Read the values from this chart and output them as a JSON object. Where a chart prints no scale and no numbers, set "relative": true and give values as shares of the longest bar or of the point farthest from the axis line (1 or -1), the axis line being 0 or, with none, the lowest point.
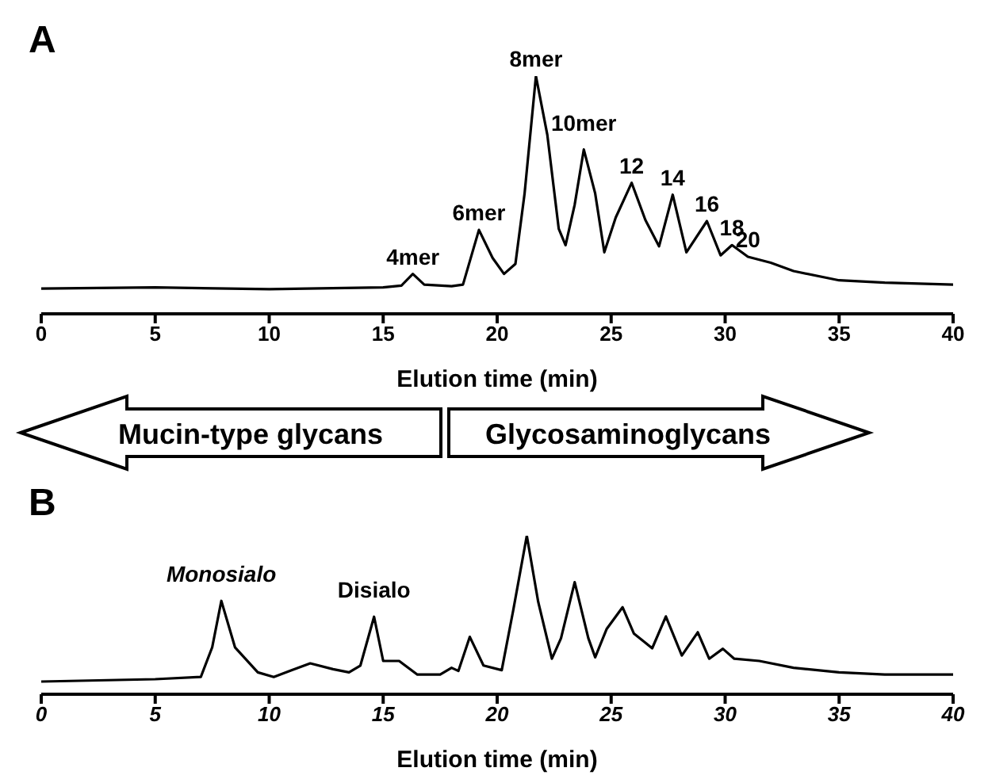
{
  "chart_data": [
    {
      "type": "line",
      "title": "A",
      "xlabel": "Elution time (min)",
      "relative": true,
      "marker": "none",
      "xlim": [
        0,
        40
      ],
      "xticks": [
        0,
        5,
        10,
        15,
        20,
        25,
        30,
        35,
        40
      ],
      "x": [
        0,
        5,
        10,
        15,
        15.8,
        16.3,
        16.8,
        18,
        18.5,
        19.2,
        19.8,
        20.3,
        20.8,
        21.2,
        21.7,
        22.2,
        22.7,
        23.0,
        23.4,
        23.8,
        24.3,
        24.7,
        25.2,
        25.9,
        26.5,
        27.1,
        27.7,
        28.3,
        29.2,
        29.8,
        30.3,
        31,
        32,
        33,
        35,
        37,
        40
      ],
      "series": [
        {
          "color": "#000000",
          "values": [
            0.106,
            0.111,
            0.104,
            0.111,
            0.119,
            0.168,
            0.123,
            0.116,
            0.123,
            0.353,
            0.235,
            0.168,
            0.21,
            0.504,
            1,
            0.753,
            0.358,
            0.289,
            0.459,
            0.691,
            0.506,
            0.259,
            0.405,
            0.551,
            0.395,
            0.284,
            0.501,
            0.259,
            0.39,
            0.246,
            0.289,
            0.24,
            0.215,
            0.18,
            0.141,
            0.131,
            0.123
          ]
        }
      ],
      "annotations": [
        {
          "text": "4mer",
          "x": 16.3,
          "y": 0.168
        },
        {
          "text": "6mer",
          "x": 19.2,
          "y": 0.353
        },
        {
          "text": "8mer",
          "x": 21.7,
          "y": 1
        },
        {
          "text": "10mer",
          "x": 23.8,
          "y": 0.691
        },
        {
          "text": "12",
          "x": 25.9,
          "y": 0.551
        },
        {
          "text": "14",
          "x": 27.7,
          "y": 0.501
        },
        {
          "text": "16",
          "x": 29.2,
          "y": 0.39
        },
        {
          "text": "18",
          "x": 30.3,
          "y": 0.289
        },
        {
          "text": "20",
          "x": 31,
          "y": 0.24
        }
      ]
    },
    {
      "type": "line",
      "title": "B",
      "xlabel": "Elution time (min)",
      "relative": true,
      "marker": "none",
      "xlim": [
        0,
        40
      ],
      "xticks": [
        0,
        5,
        10,
        15,
        20,
        25,
        30,
        35,
        40
      ],
      "x": [
        0,
        5,
        7,
        7.5,
        7.9,
        8.5,
        9.5,
        10.2,
        11,
        11.8,
        12.8,
        13.5,
        14.0,
        14.6,
        15.0,
        15.7,
        16.5,
        17.5,
        18.0,
        18.3,
        18.8,
        19.4,
        20.2,
        20.7,
        21.3,
        21.8,
        22.4,
        22.8,
        23.4,
        24.0,
        24.3,
        24.8,
        25.5,
        26,
        26.5,
        26.8,
        27.4,
        28.1,
        28.8,
        29.3,
        29.9,
        30.4,
        31.5,
        33,
        35,
        37,
        40
      ],
      "series": [
        {
          "color": "#000000",
          "values": [
            0.08,
            0.095,
            0.109,
            0.296,
            0.589,
            0.296,
            0.138,
            0.109,
            0.152,
            0.195,
            0.158,
            0.138,
            0.181,
            0.489,
            0.21,
            0.21,
            0.124,
            0.124,
            0.167,
            0.147,
            0.362,
            0.181,
            0.152,
            0.526,
            1,
            0.583,
            0.224,
            0.353,
            0.707,
            0.353,
            0.233,
            0.411,
            0.549,
            0.382,
            0.325,
            0.29,
            0.491,
            0.244,
            0.391,
            0.224,
            0.287,
            0.224,
            0.21,
            0.167,
            0.138,
            0.124,
            0.124
          ]
        }
      ],
      "annotations": [
        "Mucin-type glycans",
        "Glycosaminoglycans",
        {
          "text": "Monosialo",
          "x": 7.9,
          "y": 0.589
        },
        {
          "text": "Disialo",
          "x": 14.6,
          "y": 0.489
        }
      ]
    }
  ]
}
